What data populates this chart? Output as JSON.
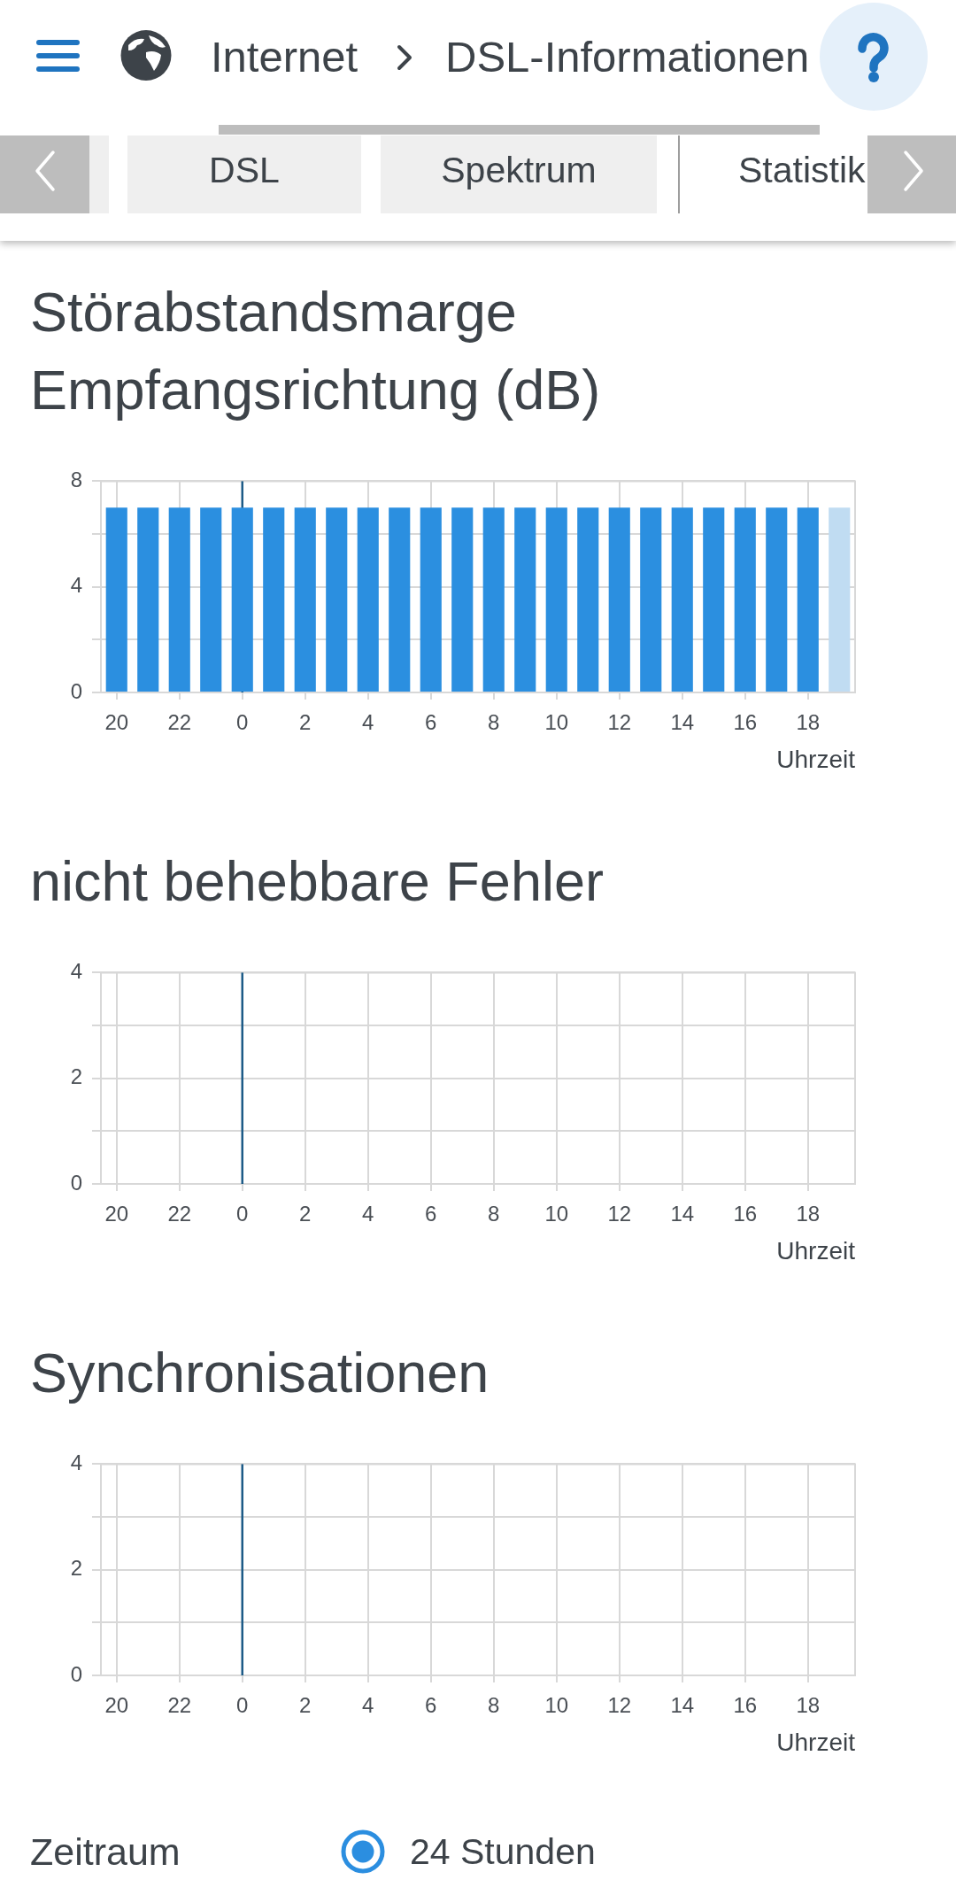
{
  "chart_data": [
    {
      "type": "other",
      "annotations": [
        "Internet",
        "DSL-Informationen",
        "DSL",
        "Spektrum",
        "Statistik"
      ]
    },
    {
      "type": "bar",
      "title": "Störabstandsmarge Empfangsrichtung (dB)",
      "xlabel": "Uhrzeit",
      "categories": [
        "20",
        null,
        "22",
        null,
        "0",
        null,
        "2",
        null,
        "4",
        null,
        "6",
        null,
        "8",
        null,
        "10",
        null,
        "12",
        null,
        "14",
        null,
        "16",
        null,
        "18",
        null
      ],
      "values": [
        7,
        7,
        7,
        7,
        7,
        7,
        7,
        7,
        7,
        7,
        7,
        7,
        7,
        7,
        7,
        7,
        7,
        7,
        7,
        7,
        7,
        7,
        7,
        7
      ],
      "colors": [
        "#2b8fe0",
        "#2b8fe0",
        "#2b8fe0",
        "#2b8fe0",
        "#2b8fe0",
        "#2b8fe0",
        "#2b8fe0",
        "#2b8fe0",
        "#2b8fe0",
        "#2b8fe0",
        "#2b8fe0",
        "#2b8fe0",
        "#2b8fe0",
        "#2b8fe0",
        "#2b8fe0",
        "#2b8fe0",
        "#2b8fe0",
        "#2b8fe0",
        "#2b8fe0",
        "#2b8fe0",
        "#2b8fe0",
        "#2b8fe0",
        "#2b8fe0",
        "#c0dcf2"
      ],
      "ylim": [
        0,
        8
      ],
      "yticks": [
        0,
        {
          "value": 2,
          "label": null
        },
        4,
        {
          "value": 6,
          "label": null
        },
        8
      ],
      "grid": true,
      "ref_lines": [
        {
          "axis": "x",
          "value": "0",
          "color": "#1d5b87"
        }
      ]
    },
    {
      "type": "bar",
      "title": "nicht behebbare Fehler",
      "xlabel": "Uhrzeit",
      "categories": [
        "20",
        null,
        "22",
        null,
        "0",
        null,
        "2",
        null,
        "4",
        null,
        "6",
        null,
        "8",
        null,
        "10",
        null,
        "12",
        null,
        "14",
        null,
        "16",
        null,
        "18",
        null
      ],
      "ylim": [
        0,
        4
      ],
      "yticks": [
        0,
        {
          "value": 1,
          "label": null
        },
        2,
        {
          "value": 3,
          "label": null
        },
        4
      ],
      "grid": true,
      "ref_lines": [
        {
          "axis": "x",
          "value": "0",
          "color": "#1d5b87"
        }
      ]
    },
    {
      "type": "bar",
      "title": "Synchronisationen",
      "xlabel": "Uhrzeit",
      "categories": [
        "20",
        null,
        "22",
        null,
        "0",
        null,
        "2",
        null,
        "4",
        null,
        "6",
        null,
        "8",
        null,
        "10",
        null,
        "12",
        null,
        "14",
        null,
        "16",
        null,
        "18",
        null
      ],
      "ylim": [
        0,
        4
      ],
      "yticks": [
        0,
        {
          "value": 1,
          "label": null
        },
        2,
        {
          "value": 3,
          "label": null
        },
        4
      ],
      "grid": true,
      "ref_lines": [
        {
          "axis": "x",
          "value": "0",
          "color": "#1d5b87"
        }
      ]
    },
    {
      "type": "other",
      "annotations": [
        "Zeitraum",
        "24 Stunden"
      ]
    }
  ]
}
